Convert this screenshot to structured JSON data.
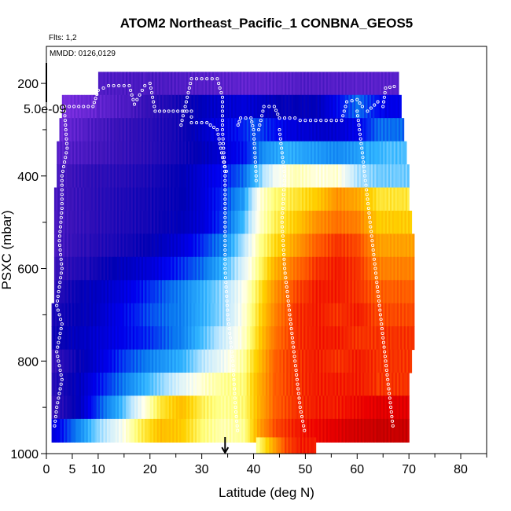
{
  "chart_data": {
    "type": "heatmap",
    "title": "ATOM2 Northeast_Pacific_1 CONBNA_GEOS5",
    "flights_note": "Flts: 1,2",
    "dates_note": "MMDD: 0126,0129",
    "xlabel": "Latitude (deg N)",
    "ylabel": "PSXC (mbar)",
    "scale_label": "5.0e-09",
    "xlim": [
      0,
      85
    ],
    "ylim": [
      1000,
      120
    ],
    "x_ticks": [
      0,
      5,
      10,
      20,
      30,
      40,
      50,
      60,
      70,
      80
    ],
    "x_minor_ticks": [
      15,
      25,
      35,
      45,
      55,
      65,
      75,
      85
    ],
    "y_ticks": [
      200,
      400,
      600,
      800,
      1000
    ],
    "y_minor_ticks": [
      300,
      500,
      700,
      900
    ],
    "marker_latitude": 34.5,
    "colormap": [
      "#7b2fe0",
      "#3a12b8",
      "#0000b4",
      "#0000f0",
      "#0a7af0",
      "#30b4ff",
      "#bfe8ff",
      "#fffff0",
      "#ffff80",
      "#ffd200",
      "#ff9a00",
      "#ff5a00",
      "#ee0000",
      "#b00000"
    ],
    "rows": [
      {
        "p": 200,
        "x_start": 10,
        "x_end": 68,
        "boundaries": [
          10,
          19,
          26,
          33,
          40,
          50,
          60,
          68
        ],
        "values": [
          0.05,
          0.06,
          0.05,
          0.04,
          0.03,
          0.05,
          0.04
        ]
      },
      {
        "p": 250,
        "x_start": 3,
        "x_end": 68.5,
        "boundaries": [
          3,
          10,
          16,
          20,
          26,
          32,
          38,
          45,
          52,
          60,
          65,
          68.5
        ],
        "values": [
          0.0,
          0.03,
          0.06,
          0.09,
          0.13,
          0.18,
          0.2,
          0.15,
          0.16,
          0.3,
          0.22
        ]
      },
      {
        "p": 300,
        "x_start": 2.5,
        "x_end": 69,
        "boundaries": [
          2.5,
          8,
          14,
          20,
          26,
          32,
          36,
          40,
          44,
          48,
          54,
          60,
          64,
          69
        ],
        "values": [
          0.02,
          0.05,
          0.08,
          0.1,
          0.13,
          0.2,
          0.23,
          0.28,
          0.24,
          0.2,
          0.18,
          0.22,
          0.3
        ]
      },
      {
        "p": 350,
        "x_start": 2,
        "x_end": 69.5,
        "boundaries": [
          2,
          8,
          14,
          20,
          26,
          30,
          34,
          38,
          42,
          46,
          50,
          56,
          62,
          66,
          69.5
        ],
        "values": [
          0.04,
          0.06,
          0.08,
          0.1,
          0.13,
          0.16,
          0.2,
          0.24,
          0.34,
          0.38,
          0.36,
          0.33,
          0.37,
          0.4
        ]
      },
      {
        "p": 400,
        "x_start": 2,
        "x_end": 70,
        "boundaries": [
          2,
          8,
          14,
          20,
          26,
          30,
          34,
          38,
          42,
          44,
          48,
          52,
          56,
          60,
          64,
          70
        ],
        "values": [
          0.06,
          0.09,
          0.1,
          0.12,
          0.15,
          0.2,
          0.24,
          0.3,
          0.46,
          0.52,
          0.58,
          0.55,
          0.56,
          0.45,
          0.42
        ]
      },
      {
        "p": 450,
        "x_start": 1.5,
        "x_end": 70,
        "boundaries": [
          1.5,
          8,
          14,
          20,
          26,
          30,
          34,
          38,
          41,
          44,
          48,
          52,
          56,
          60,
          64,
          70
        ],
        "values": [
          0.06,
          0.09,
          0.11,
          0.13,
          0.15,
          0.2,
          0.26,
          0.36,
          0.55,
          0.62,
          0.66,
          0.7,
          0.78,
          0.75,
          0.66
        ]
      },
      {
        "p": 500,
        "x_start": 1.5,
        "x_end": 70.5,
        "boundaries": [
          1.5,
          8,
          14,
          20,
          26,
          30,
          34,
          38,
          41,
          44,
          48,
          52,
          56,
          60,
          64,
          70.5
        ],
        "values": [
          0.06,
          0.09,
          0.11,
          0.13,
          0.16,
          0.2,
          0.27,
          0.4,
          0.56,
          0.64,
          0.7,
          0.78,
          0.82,
          0.8,
          0.7
        ]
      },
      {
        "p": 550,
        "x_start": 1.5,
        "x_end": 71,
        "boundaries": [
          1.5,
          8,
          14,
          20,
          26,
          30,
          34,
          38,
          41,
          44,
          48,
          52,
          56,
          60,
          64,
          71
        ],
        "values": [
          0.06,
          0.1,
          0.12,
          0.15,
          0.2,
          0.26,
          0.32,
          0.46,
          0.6,
          0.68,
          0.76,
          0.84,
          0.88,
          0.86,
          0.76
        ]
      },
      {
        "p": 600,
        "x_start": 1.5,
        "x_end": 71,
        "boundaries": [
          1.5,
          8,
          14,
          20,
          26,
          30,
          34,
          38,
          41,
          44,
          48,
          52,
          56,
          60,
          64,
          71
        ],
        "values": [
          0.08,
          0.12,
          0.16,
          0.2,
          0.26,
          0.3,
          0.38,
          0.5,
          0.62,
          0.74,
          0.82,
          0.88,
          0.9,
          0.88,
          0.8
        ]
      },
      {
        "p": 650,
        "x_start": 1.5,
        "x_end": 71,
        "boundaries": [
          1.5,
          8,
          14,
          20,
          26,
          30,
          34,
          38,
          41,
          44,
          48,
          52,
          56,
          60,
          64,
          71
        ],
        "values": [
          0.1,
          0.16,
          0.2,
          0.26,
          0.32,
          0.38,
          0.44,
          0.54,
          0.66,
          0.78,
          0.86,
          0.9,
          0.9,
          0.88,
          0.84
        ]
      },
      {
        "p": 700,
        "x_start": 1,
        "x_end": 71,
        "boundaries": [
          1,
          8,
          14,
          20,
          26,
          30,
          34,
          38,
          41,
          44,
          48,
          52,
          56,
          60,
          64,
          71
        ],
        "values": [
          0.12,
          0.16,
          0.22,
          0.28,
          0.32,
          0.38,
          0.44,
          0.55,
          0.68,
          0.8,
          0.88,
          0.9,
          0.88,
          0.9,
          0.86
        ]
      },
      {
        "p": 750,
        "x_start": 1,
        "x_end": 71,
        "boundaries": [
          1,
          8,
          14,
          20,
          26,
          30,
          34,
          38,
          41,
          44,
          48,
          52,
          56,
          60,
          64,
          71
        ],
        "values": [
          0.13,
          0.18,
          0.22,
          0.26,
          0.32,
          0.4,
          0.48,
          0.56,
          0.7,
          0.82,
          0.88,
          0.9,
          0.9,
          0.88,
          0.88
        ]
      },
      {
        "p": 800,
        "x_start": 1,
        "x_end": 70.5,
        "boundaries": [
          1,
          6,
          10,
          14,
          20,
          26,
          30,
          34,
          38,
          41,
          44,
          48,
          52,
          56,
          60,
          64,
          70.5
        ],
        "values": [
          0.08,
          0.14,
          0.2,
          0.26,
          0.32,
          0.38,
          0.46,
          0.52,
          0.6,
          0.72,
          0.84,
          0.88,
          0.9,
          0.88,
          0.9,
          0.88
        ]
      },
      {
        "p": 850,
        "x_start": 1,
        "x_end": 70,
        "boundaries": [
          1,
          6,
          10,
          14,
          20,
          26,
          30,
          34,
          38,
          41,
          44,
          48,
          52,
          56,
          60,
          64,
          70
        ],
        "values": [
          0.1,
          0.16,
          0.24,
          0.3,
          0.4,
          0.5,
          0.56,
          0.6,
          0.62,
          0.74,
          0.84,
          0.88,
          0.9,
          0.9,
          0.9,
          0.88
        ]
      },
      {
        "p": 900,
        "x_start": 1,
        "x_end": 70,
        "boundaries": [
          1,
          6,
          10,
          14,
          18,
          22,
          26,
          30,
          34,
          38,
          41,
          44,
          48,
          52,
          56,
          60,
          64,
          70
        ],
        "values": [
          0.08,
          0.16,
          0.28,
          0.38,
          0.52,
          0.66,
          0.72,
          0.64,
          0.6,
          0.62,
          0.74,
          0.84,
          0.88,
          0.9,
          0.9,
          0.92,
          0.94
        ]
      },
      {
        "p": 950,
        "x_start": 1,
        "x_end": 70,
        "boundaries": [
          1,
          6,
          10,
          14,
          18,
          22,
          26,
          30,
          34,
          38,
          41,
          44,
          48,
          52,
          56,
          60,
          64,
          70
        ],
        "values": [
          0.2,
          0.32,
          0.44,
          0.52,
          0.64,
          0.72,
          0.7,
          0.62,
          0.58,
          0.6,
          0.76,
          0.86,
          0.9,
          0.92,
          0.94,
          0.96,
          0.97
        ]
      },
      {
        "p": 990,
        "x_start": 40.5,
        "x_end": 52,
        "boundaries": [
          40.5,
          43,
          46,
          49,
          52
        ],
        "values": [
          0.6,
          0.72,
          0.86,
          0.9
        ]
      }
    ],
    "flight_tracks": [
      {
        "name": "track-1",
        "points": [
          [
            3.5,
            260
          ],
          [
            4,
            340
          ],
          [
            3,
            400
          ],
          [
            3,
            470
          ],
          [
            2.5,
            540
          ],
          [
            3,
            600
          ],
          [
            2,
            680
          ],
          [
            3,
            720
          ],
          [
            2,
            780
          ],
          [
            3,
            840
          ],
          [
            2,
            900
          ],
          [
            1.5,
            950
          ]
        ]
      },
      {
        "name": "track-2",
        "points": [
          [
            3.5,
            250
          ],
          [
            9,
            250
          ],
          [
            10,
            215
          ],
          [
            12,
            205
          ],
          [
            16,
            205
          ],
          [
            17,
            245
          ],
          [
            19,
            205
          ],
          [
            20,
            200
          ],
          [
            21,
            260
          ],
          [
            28,
            260
          ],
          [
            28,
            285
          ],
          [
            31,
            285
          ],
          [
            33,
            300
          ],
          [
            34,
            360
          ],
          [
            35,
            400
          ]
        ]
      },
      {
        "name": "track-3",
        "points": [
          [
            26,
            290
          ],
          [
            28,
            190
          ],
          [
            33,
            190
          ],
          [
            34,
            230
          ],
          [
            34,
            300
          ],
          [
            34.5,
            400
          ],
          [
            34.5,
            500
          ],
          [
            34.5,
            600
          ],
          [
            35,
            700
          ],
          [
            36,
            800
          ],
          [
            36.5,
            900
          ],
          [
            37,
            960
          ]
        ]
      },
      {
        "name": "track-4",
        "points": [
          [
            37,
            290
          ],
          [
            37.5,
            275
          ],
          [
            39.5,
            275
          ],
          [
            40,
            300
          ],
          [
            40.5,
            400
          ],
          [
            40.5,
            420
          ]
        ]
      },
      {
        "name": "track-5",
        "points": [
          [
            41,
            300
          ],
          [
            42,
            250
          ],
          [
            44,
            250
          ],
          [
            45,
            275
          ],
          [
            48,
            275
          ],
          [
            49,
            280
          ],
          [
            53,
            280
          ],
          [
            57,
            280
          ],
          [
            58,
            240
          ],
          [
            60,
            235
          ],
          [
            61,
            250
          ],
          [
            62,
            260
          ],
          [
            64,
            240
          ],
          [
            65,
            250
          ],
          [
            65.5,
            210
          ],
          [
            68,
            205
          ]
        ]
      },
      {
        "name": "track-6",
        "points": [
          [
            45,
            300
          ],
          [
            46,
            400
          ],
          [
            45.5,
            500
          ],
          [
            46,
            600
          ],
          [
            47,
            700
          ],
          [
            48,
            800
          ],
          [
            49,
            900
          ],
          [
            50,
            960
          ]
        ]
      },
      {
        "name": "track-7",
        "points": [
          [
            60,
            260
          ],
          [
            61,
            350
          ],
          [
            62,
            450
          ],
          [
            63,
            550
          ],
          [
            64,
            650
          ],
          [
            65,
            750
          ],
          [
            66,
            850
          ],
          [
            67,
            950
          ]
        ]
      }
    ]
  }
}
